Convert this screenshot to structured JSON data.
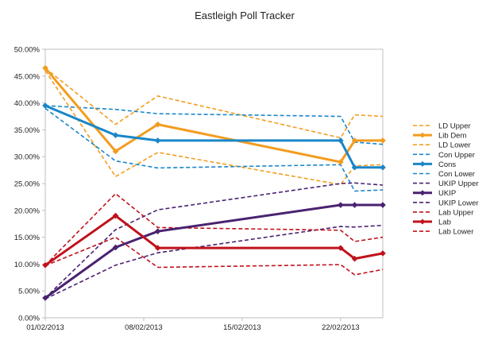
{
  "chart_data": {
    "type": "line",
    "title": "Eastleigh Poll Tracker",
    "xlabel": "",
    "ylabel": "",
    "x_ticks": [
      "01/02/2013",
      "08/02/2013",
      "15/02/2013",
      "22/02/2013"
    ],
    "x_range": [
      "01/02/2013",
      "25/02/2013"
    ],
    "y_ticks": [
      "0.00%",
      "5.00%",
      "10.00%",
      "15.00%",
      "20.00%",
      "25.00%",
      "30.00%",
      "35.00%",
      "40.00%",
      "45.00%",
      "50.00%"
    ],
    "ylim": [
      0,
      50
    ],
    "grid": false,
    "legend_position": "right",
    "series": [
      {
        "name": "LD Upper",
        "color": "#f39c1f",
        "style": "dashed",
        "marker": false,
        "x": [
          "01/02/2013",
          "06/02/2013",
          "09/02/2013",
          "22/02/2013",
          "23/02/2013",
          "25/02/2013"
        ],
        "y": [
          46.5,
          36.0,
          41.3,
          33.5,
          37.8,
          37.5
        ]
      },
      {
        "name": "Lib Dem",
        "color": "#f39c1f",
        "style": "solid",
        "marker": true,
        "x": [
          "01/02/2013",
          "06/02/2013",
          "09/02/2013",
          "22/02/2013",
          "23/02/2013",
          "25/02/2013"
        ],
        "y": [
          46.5,
          31.0,
          36.0,
          29.0,
          33.0,
          33.0
        ]
      },
      {
        "name": "LD Lower",
        "color": "#f39c1f",
        "style": "dashed",
        "marker": false,
        "x": [
          "01/02/2013",
          "06/02/2013",
          "09/02/2013",
          "22/02/2013",
          "23/02/2013",
          "25/02/2013"
        ],
        "y": [
          46.0,
          26.3,
          30.8,
          24.8,
          28.3,
          28.5
        ]
      },
      {
        "name": "Con Upper",
        "color": "#1a86c8",
        "style": "dashed",
        "marker": false,
        "x": [
          "01/02/2013",
          "06/02/2013",
          "09/02/2013",
          "22/02/2013",
          "23/02/2013",
          "25/02/2013"
        ],
        "y": [
          39.5,
          38.8,
          38.0,
          37.5,
          32.7,
          32.3
        ]
      },
      {
        "name": "Cons",
        "color": "#1a86c8",
        "style": "solid",
        "marker": true,
        "x": [
          "01/02/2013",
          "06/02/2013",
          "09/02/2013",
          "22/02/2013",
          "23/02/2013",
          "25/02/2013"
        ],
        "y": [
          39.5,
          34.0,
          33.0,
          33.0,
          28.0,
          28.0
        ]
      },
      {
        "name": "Con Lower",
        "color": "#1a86c8",
        "style": "dashed",
        "marker": false,
        "x": [
          "01/02/2013",
          "06/02/2013",
          "09/02/2013",
          "22/02/2013",
          "23/02/2013",
          "25/02/2013"
        ],
        "y": [
          39.0,
          29.2,
          27.9,
          28.5,
          23.6,
          23.8
        ]
      },
      {
        "name": "UKIP Upper",
        "color": "#4a2270",
        "style": "dashed",
        "marker": false,
        "x": [
          "01/02/2013",
          "06/02/2013",
          "09/02/2013",
          "22/02/2013",
          "23/02/2013",
          "25/02/2013"
        ],
        "y": [
          3.7,
          16.4,
          20.1,
          25.0,
          25.1,
          24.7
        ]
      },
      {
        "name": "UKIP",
        "color": "#4a2270",
        "style": "solid",
        "marker": true,
        "x": [
          "01/02/2013",
          "06/02/2013",
          "09/02/2013",
          "22/02/2013",
          "23/02/2013",
          "25/02/2013"
        ],
        "y": [
          3.7,
          13.1,
          16.1,
          21.0,
          21.0,
          21.0
        ]
      },
      {
        "name": "UKIP Lower",
        "color": "#4a2270",
        "style": "dashed",
        "marker": false,
        "x": [
          "01/02/2013",
          "06/02/2013",
          "09/02/2013",
          "22/02/2013",
          "23/02/2013",
          "25/02/2013"
        ],
        "y": [
          3.5,
          9.8,
          12.1,
          17.0,
          16.9,
          17.2
        ]
      },
      {
        "name": "Lab Upper",
        "color": "#c0121c",
        "style": "dashed",
        "marker": false,
        "x": [
          "01/02/2013",
          "06/02/2013",
          "09/02/2013",
          "22/02/2013",
          "23/02/2013",
          "25/02/2013"
        ],
        "y": [
          9.8,
          23.1,
          16.8,
          16.3,
          14.2,
          15.0
        ]
      },
      {
        "name": "Lab",
        "color": "#c0121c",
        "style": "solid",
        "marker": true,
        "x": [
          "01/02/2013",
          "06/02/2013",
          "09/02/2013",
          "22/02/2013",
          "23/02/2013",
          "25/02/2013"
        ],
        "y": [
          9.8,
          19.0,
          13.0,
          13.0,
          11.0,
          12.0
        ]
      },
      {
        "name": "Lab Lower",
        "color": "#c0121c",
        "style": "dashed",
        "marker": false,
        "x": [
          "01/02/2013",
          "06/02/2013",
          "09/02/2013",
          "22/02/2013",
          "23/02/2013",
          "25/02/2013"
        ],
        "y": [
          9.7,
          15.0,
          9.4,
          9.9,
          8.0,
          9.0
        ]
      }
    ]
  }
}
